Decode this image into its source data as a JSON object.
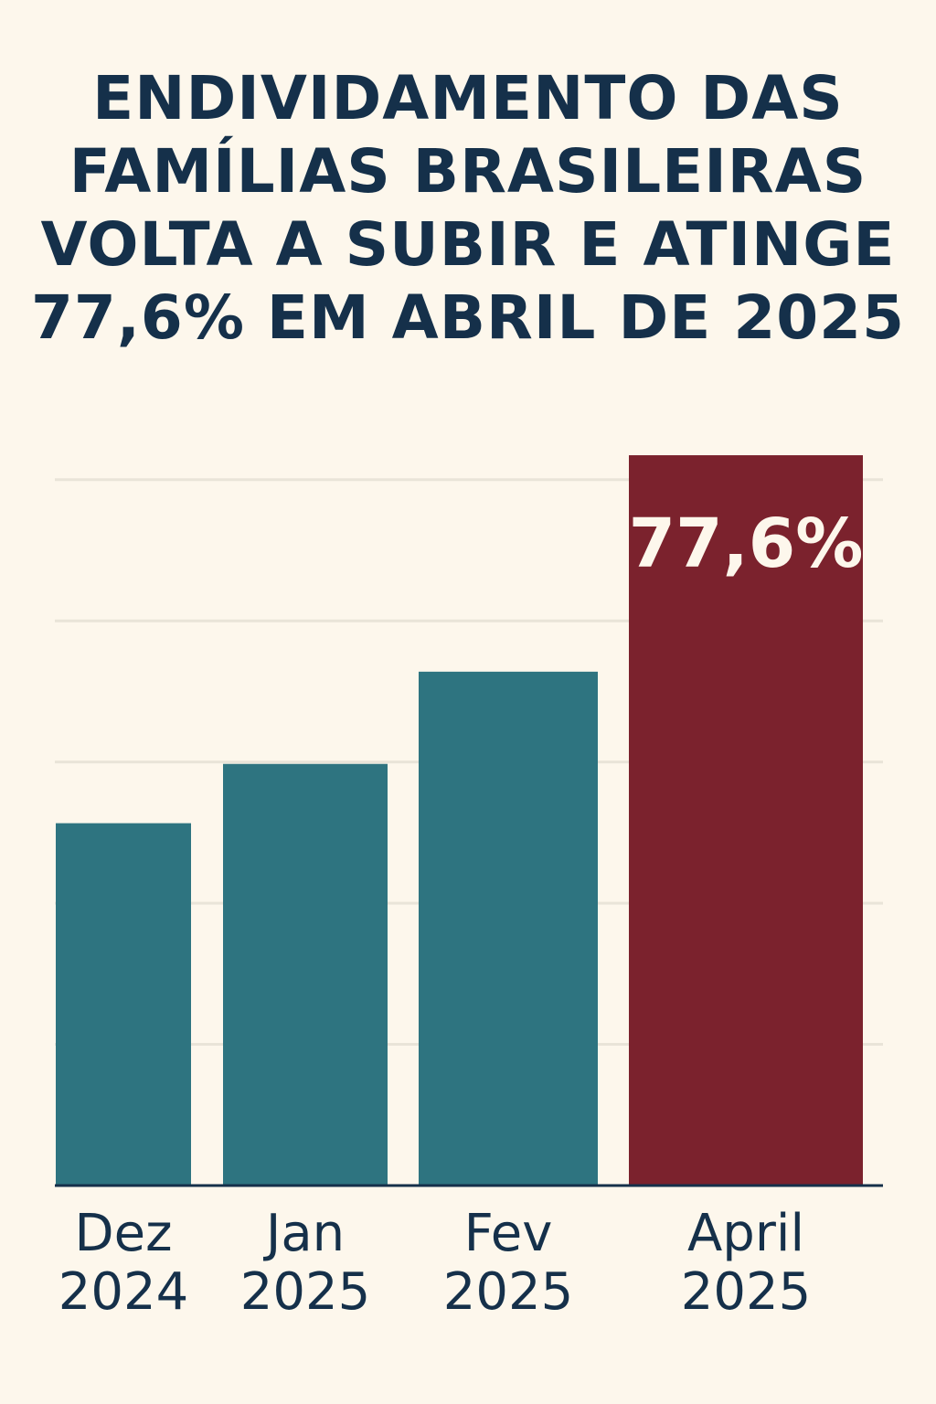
{
  "chart_data": {
    "type": "bar",
    "title": "ENDIVIDAMENTO DAS FAMÍLIAS BRASILEIRAS VOLTA A SUBIR E ATINGE 77,6% EM ABRIL DE 2025",
    "categories": [
      "Dez 2024",
      "Jan 2025",
      "Fev 2025",
      "April 2025"
    ],
    "values": [
      38.5,
      44.8,
      54.6,
      77.6
    ],
    "value_labels": [
      null,
      null,
      null,
      "77,6%"
    ],
    "colors": [
      "#2e7480",
      "#2e7480",
      "#2e7480",
      "#7b222d"
    ],
    "ylim": [
      0,
      80
    ],
    "yticks": [
      15,
      30,
      45,
      60,
      75
    ],
    "grid": true,
    "tick_labels": false
  }
}
